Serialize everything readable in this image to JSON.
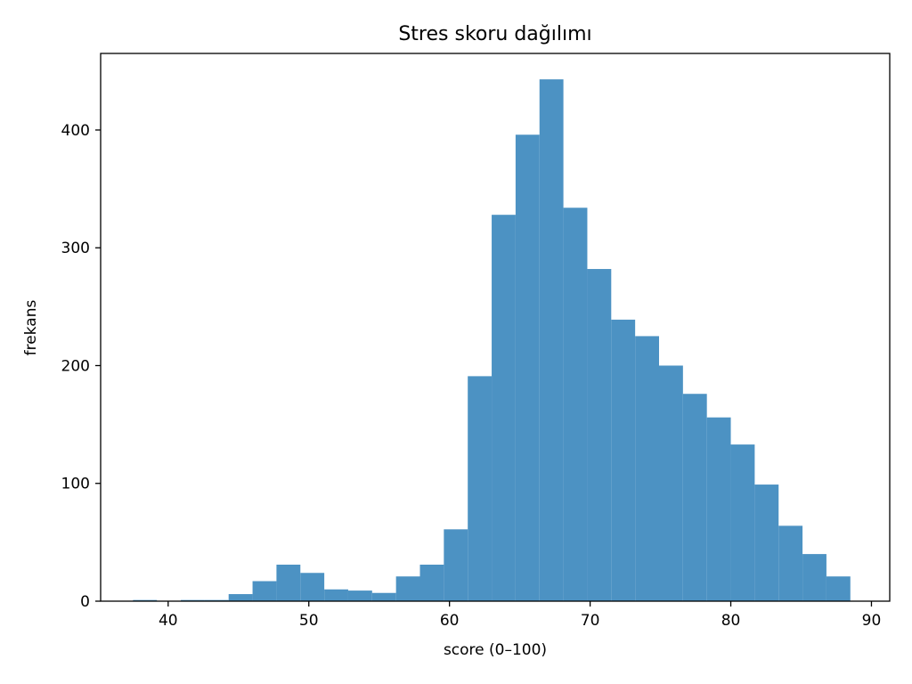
{
  "chart_data": {
    "type": "histogram",
    "title": "Stres skoru dağılımı",
    "xlabel": "score (0–100)",
    "ylabel": "frekans",
    "xlim": [
      35.2,
      91.3
    ],
    "ylim": [
      0,
      465
    ],
    "xticks": [
      40,
      50,
      60,
      70,
      80,
      90
    ],
    "yticks": [
      0,
      100,
      200,
      300,
      400
    ],
    "bar_color": "#4c92c3",
    "grid": false,
    "legend": "none",
    "bins": [
      {
        "x0": 37.5,
        "x1": 39.2,
        "count": 1
      },
      {
        "x0": 39.2,
        "x1": 40.9,
        "count": 0
      },
      {
        "x0": 40.9,
        "x1": 42.6,
        "count": 1
      },
      {
        "x0": 42.6,
        "x1": 44.3,
        "count": 1
      },
      {
        "x0": 44.3,
        "x1": 46.0,
        "count": 6
      },
      {
        "x0": 46.0,
        "x1": 47.7,
        "count": 17
      },
      {
        "x0": 47.7,
        "x1": 49.4,
        "count": 31
      },
      {
        "x0": 49.4,
        "x1": 51.1,
        "count": 24
      },
      {
        "x0": 51.1,
        "x1": 52.8,
        "count": 10
      },
      {
        "x0": 52.8,
        "x1": 54.5,
        "count": 9
      },
      {
        "x0": 54.5,
        "x1": 56.2,
        "count": 7
      },
      {
        "x0": 56.2,
        "x1": 57.9,
        "count": 21
      },
      {
        "x0": 57.9,
        "x1": 59.6,
        "count": 31
      },
      {
        "x0": 59.6,
        "x1": 61.3,
        "count": 61
      },
      {
        "x0": 61.3,
        "x1": 63.0,
        "count": 191
      },
      {
        "x0": 63.0,
        "x1": 64.7,
        "count": 328
      },
      {
        "x0": 64.7,
        "x1": 66.4,
        "count": 396
      },
      {
        "x0": 66.4,
        "x1": 68.1,
        "count": 443
      },
      {
        "x0": 68.1,
        "x1": 69.8,
        "count": 334
      },
      {
        "x0": 69.8,
        "x1": 71.5,
        "count": 282
      },
      {
        "x0": 71.5,
        "x1": 73.2,
        "count": 239
      },
      {
        "x0": 73.2,
        "x1": 74.9,
        "count": 225
      },
      {
        "x0": 74.9,
        "x1": 76.6,
        "count": 200
      },
      {
        "x0": 76.6,
        "x1": 78.3,
        "count": 176
      },
      {
        "x0": 78.3,
        "x1": 80.0,
        "count": 156
      },
      {
        "x0": 80.0,
        "x1": 81.7,
        "count": 133
      },
      {
        "x0": 81.7,
        "x1": 83.4,
        "count": 99
      },
      {
        "x0": 83.4,
        "x1": 85.1,
        "count": 64
      },
      {
        "x0": 85.1,
        "x1": 86.8,
        "count": 40
      },
      {
        "x0": 86.8,
        "x1": 88.5,
        "count": 21
      }
    ]
  }
}
